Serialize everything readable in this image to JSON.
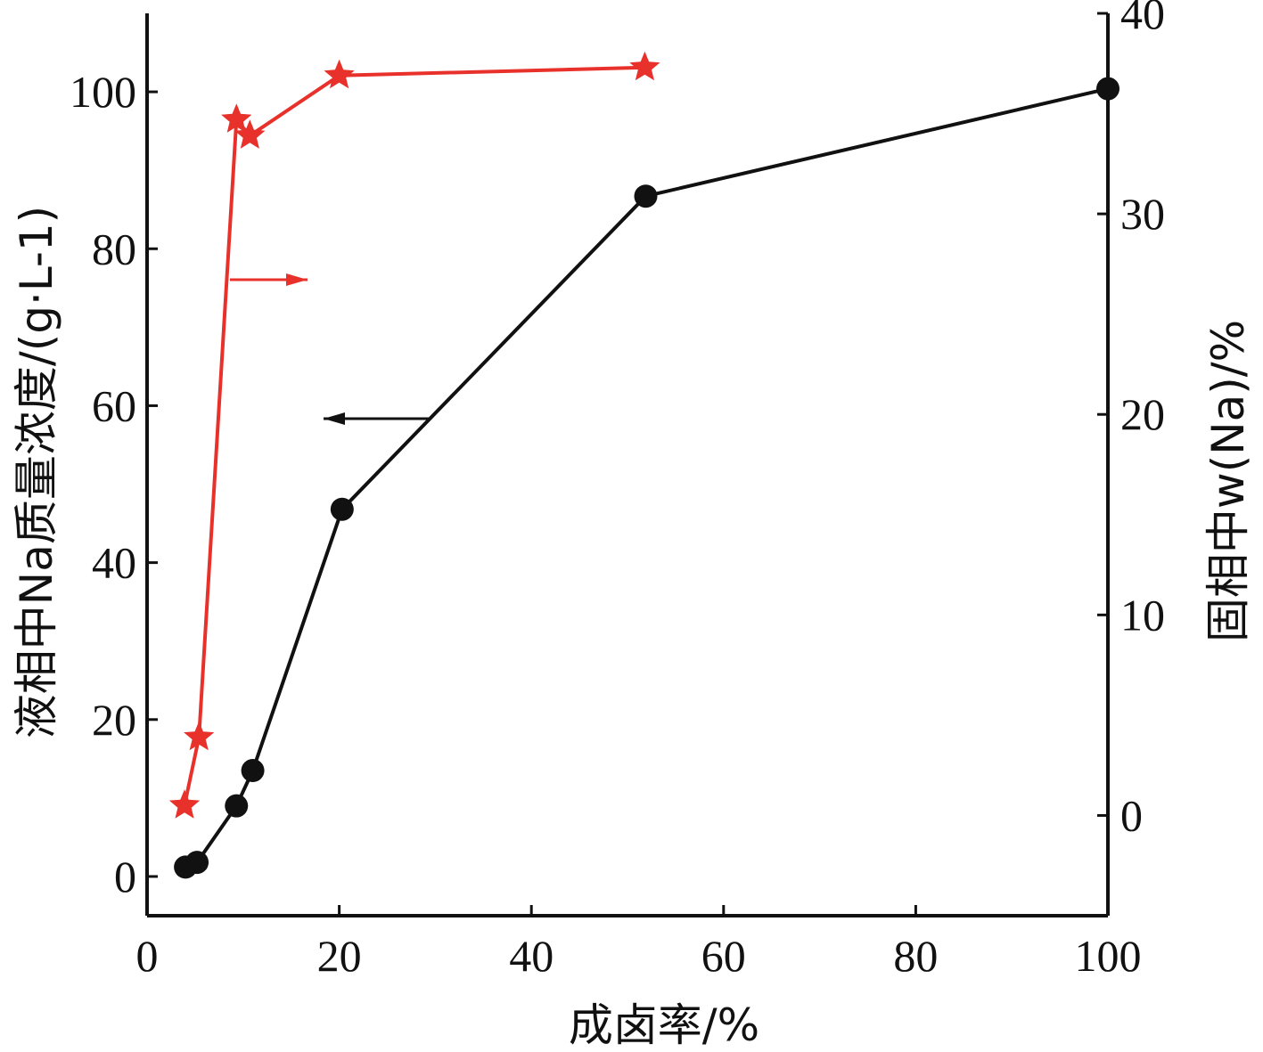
{
  "chart_data": {
    "type": "line",
    "title": "",
    "xlabel": "成卤率/%",
    "ylabel_left": "液相中Na质量浓度/(g·L-1)",
    "ylabel_right": "固相中w(Na)/%",
    "xlim": [
      0,
      100
    ],
    "ylim_left": [
      -5,
      110
    ],
    "ylim_right": [
      -5,
      40
    ],
    "xticks": [
      "0",
      "20",
      "40",
      "60",
      "80",
      "100"
    ],
    "yticks_left": [
      "0",
      "20",
      "40",
      "60",
      "80",
      "100"
    ],
    "yticks_right": [
      "0",
      "10",
      "20",
      "30",
      "40"
    ],
    "series": [
      {
        "name": "液相中Na质量浓度",
        "axis": "left",
        "color": "#111111",
        "marker": "circle",
        "x": [
          4,
          5.2,
          9.3,
          11,
          20.3,
          51.9,
          100
        ],
        "y": [
          1.2,
          1.8,
          9,
          13.5,
          46.8,
          86.7,
          100.4
        ]
      },
      {
        "name": "固相中w(Na)",
        "axis": "right",
        "color": "#e8312b",
        "marker": "star",
        "x": [
          3.9,
          5.4,
          9.3,
          10.7,
          20,
          51.8
        ],
        "y": [
          0.5,
          3.9,
          34.7,
          33.9,
          36.9,
          37.3
        ]
      }
    ],
    "annotations": [
      {
        "type": "arrow",
        "direction": "right",
        "series": "固相中w(Na)",
        "color": "#e8312b"
      },
      {
        "type": "arrow",
        "direction": "left",
        "series": "液相中Na质量浓度",
        "color": "#111111"
      }
    ]
  }
}
